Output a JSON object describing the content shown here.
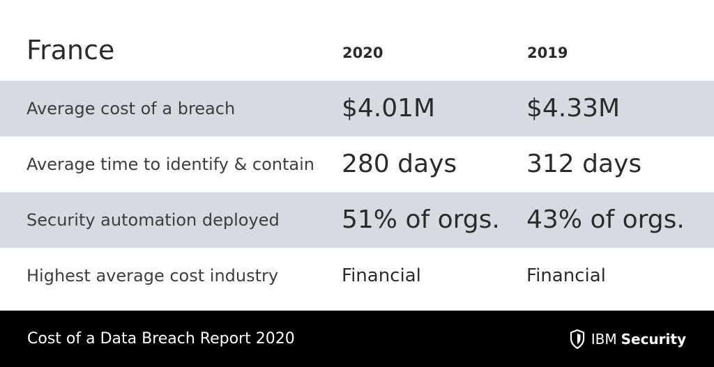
{
  "header": {
    "country": "France",
    "col_2020": "2020",
    "col_2019": "2019"
  },
  "rows": [
    {
      "label": "Average cost of a breach",
      "v2020": "$4.01M",
      "v2019": "$4.33M"
    },
    {
      "label": "Average time to identify & contain",
      "v2020": "280 days",
      "v2019": "312 days"
    },
    {
      "label": "Security automation deployed",
      "v2020": "51% of orgs.",
      "v2019": "43% of orgs."
    },
    {
      "label": "Highest average cost industry",
      "v2020": "Financial",
      "v2019": "Financial"
    }
  ],
  "footer": {
    "title": "Cost of a Data Breach Report 2020",
    "brand_ibm": "IBM",
    "brand_security": "Security",
    "brand_icon": "shield-icon"
  },
  "colors": {
    "row_shade": "#d6dbe1",
    "footer_bg": "#000000",
    "text": "#2b2b2b"
  }
}
